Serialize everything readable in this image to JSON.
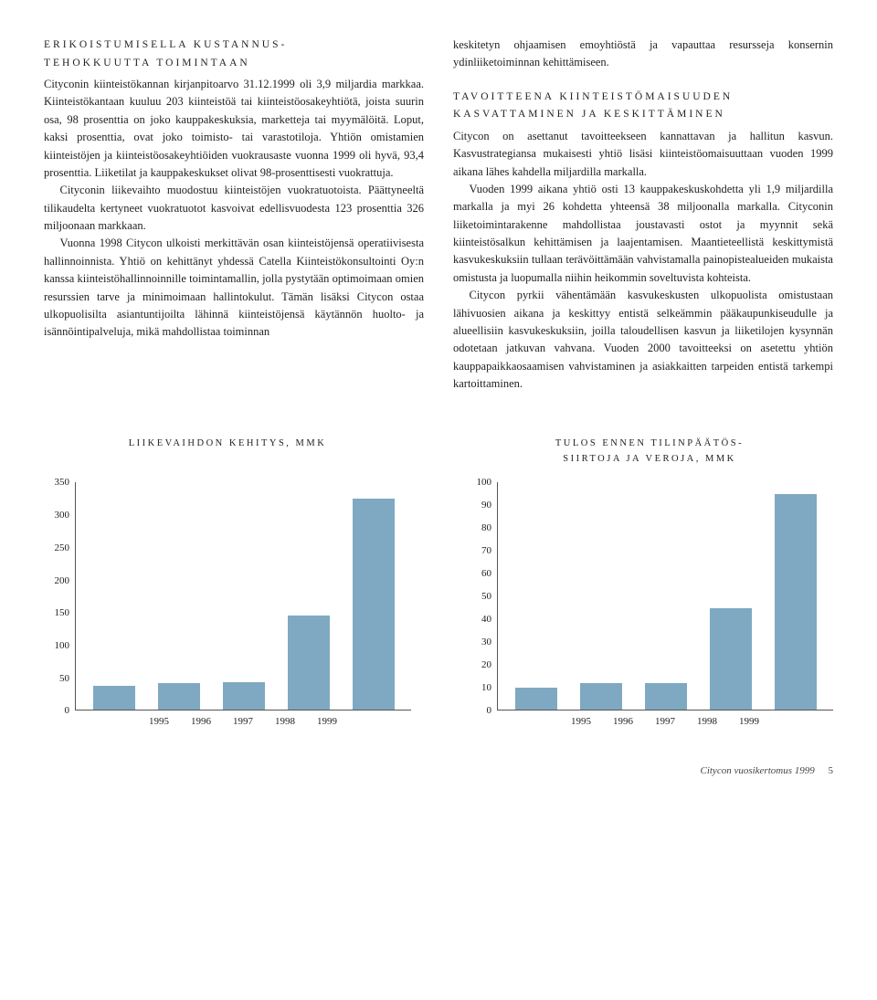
{
  "left": {
    "kicker": "ERIKOISTUMISELLA KUSTANNUS-\nTEHOKKUUTTA TOIMINTAAN",
    "p1": "Cityconin kiinteistökannan kirjanpitoarvo 31.12.1999 oli 3,9 miljardia markkaa. Kiinteistökantaan kuuluu 203 kiinteistöä tai kiinteistöosakeyhtiötä, joista suurin osa, 98 prosenttia on joko kauppakeskuksia, marketteja tai myymälöitä. Loput, kaksi prosenttia, ovat joko toimisto- tai varastotiloja. Yhtiön omistamien kiinteistöjen ja kiinteistöosakeyhtiöiden vuokrausaste vuonna 1999 oli hyvä, 93,4 prosenttia. Liiketilat ja kauppakeskukset olivat 98-prosenttisesti vuokrattuja.",
    "p2": "Cityconin liikevaihto muodostuu kiinteistöjen vuokratuotoista. Päättyneeltä tilikaudelta kertyneet vuokratuotot kasvoivat edellisvuodesta 123 prosenttia 326 miljoonaan markkaan.",
    "p3": "Vuonna 1998 Citycon ulkoisti merkittävän osan kiinteistöjensä operatiivisesta hallinnoinnista. Yhtiö on kehittänyt yhdessä Catella Kiinteistökonsultointi Oy:n kanssa kiinteistöhallinnoinnille toimintamallin, jolla pystytään optimoimaan omien resurssien tarve ja minimoimaan hallintokulut. Tämän lisäksi Citycon ostaa ulkopuolisilta asiantuntijoilta lähinnä kiinteistöjensä käytännön huolto- ja isännöintipalveluja, mikä mahdollistaa toiminnan"
  },
  "right": {
    "p0": "keskitetyn ohjaamisen emoyhtiöstä ja vapauttaa resursseja konsernin ydinliiketoiminnan kehittämiseen.",
    "kicker": "TAVOITTEENA KIINTEISTÖMAISUUDEN\nKASVATTAMINEN JA KESKITTÄMINEN",
    "p1": "Citycon on asettanut tavoitteekseen kannattavan ja hallitun kasvun. Kasvustrategiansa mukaisesti yhtiö lisäsi kiinteistöomaisuuttaan vuoden 1999 aikana lähes kahdella miljardilla markalla.",
    "p2": "Vuoden 1999 aikana yhtiö osti 13 kauppakeskuskohdetta yli 1,9 miljardilla markalla ja myi 26 kohdetta yhteensä 38 miljoonalla markalla. Cityconin liiketoimintarakenne mahdollistaa joustavasti ostot ja myynnit sekä kiinteistösalkun kehittämisen ja laajentamisen. Maantieteellistä keskittymistä kasvukeskuksiin tullaan terävöittämään vahvistamalla painopistealueiden mukaista omistusta ja luopumalla niihin heikommin soveltuvista kohteista.",
    "p3": "Citycon pyrkii vähentämään kasvukeskusten ulkopuolista omistustaan lähivuosien aikana ja keskittyy entistä selkeämmin pääkaupunkiseudulle ja alueellisiin kasvukeskuksiin, joilla taloudellisen kasvun ja liiketilojen kysynnän odotetaan jatkuvan vahvana. Vuoden 2000 tavoitteeksi on asetettu yhtiön kauppapaikkaosaamisen vahvistaminen ja asiakkaitten tarpeiden entistä tarkempi kartoittaminen."
  },
  "chart1": {
    "title": "LIIKEVAIHDON KEHITYS, MMK",
    "type": "bar",
    "categories": [
      "1995",
      "1996",
      "1997",
      "1998",
      "1999"
    ],
    "values": [
      38,
      42,
      44,
      146,
      326
    ],
    "ylim": [
      0,
      350
    ],
    "yticks": [
      0,
      50,
      100,
      150,
      200,
      250,
      300,
      350
    ],
    "bar_color": "#7fa9c2",
    "axis_color": "#555555",
    "label_fontsize": 11
  },
  "chart2": {
    "title": "TULOS ENNEN TILINPÄÄTÖS-\nSIIRTOJA JA VEROJA, MMK",
    "type": "bar",
    "categories": [
      "1995",
      "1996",
      "1997",
      "1998",
      "1999"
    ],
    "values": [
      10,
      12,
      12,
      45,
      95
    ],
    "ylim": [
      0,
      100
    ],
    "yticks": [
      0,
      10,
      20,
      30,
      40,
      50,
      60,
      70,
      80,
      90,
      100
    ],
    "bar_color": "#7fa9c2",
    "axis_color": "#555555",
    "label_fontsize": 11
  },
  "footer": {
    "text": "Citycon vuosikertomus 1999",
    "page": "5"
  }
}
